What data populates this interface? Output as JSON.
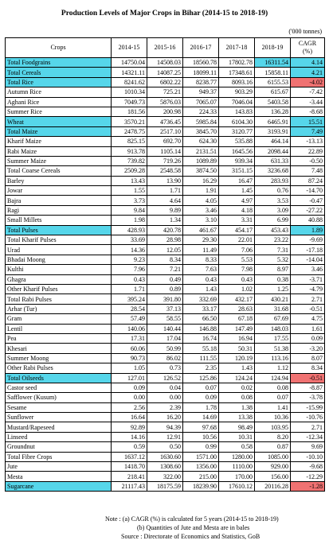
{
  "title": "Production Levels of Major Crops in Bihar (2014-15 to 2018-19)",
  "unit": "('000 tonnes)",
  "headers": {
    "crop": "Crops",
    "years": [
      "2014-15",
      "2015-16",
      "2016-17",
      "2017-18",
      "2018-19"
    ],
    "cagr1": "CAGR",
    "cagr2": "(%)"
  },
  "colors": {
    "highlight": "#56d6ea",
    "negative": "#f07272"
  },
  "rows": [
    {
      "name": "Total Foodgrains",
      "lvl": 1,
      "hl": true,
      "cagr_neg": false,
      "v": [
        "14750.04",
        "14508.03",
        "18560.78",
        "17802.78",
        "16311.54",
        "4.14"
      ]
    },
    {
      "name": "Total Cereals",
      "lvl": 1,
      "hl": true,
      "cagr_neg": false,
      "v": [
        "14321.11",
        "14087.25",
        "18099.11",
        "17348.61",
        "15858.11",
        "4.21"
      ]
    },
    {
      "name": "Total Rice",
      "lvl": 1,
      "hl": true,
      "cagr_neg": true,
      "v": [
        "8241.62",
        "6802.22",
        "8238.77",
        "8093.16",
        "6155.53",
        "-4.02"
      ]
    },
    {
      "name": "Autumn Rice",
      "lvl": 3,
      "hl": false,
      "cagr_neg": false,
      "v": [
        "1010.34",
        "725.21",
        "949.37",
        "903.29",
        "615.67",
        "-7.42"
      ]
    },
    {
      "name": "Aghani Rice",
      "lvl": 3,
      "hl": false,
      "cagr_neg": false,
      "v": [
        "7049.73",
        "5876.03",
        "7065.07",
        "7046.04",
        "5403.58",
        "-3.44"
      ]
    },
    {
      "name": "Summer Rice",
      "lvl": 3,
      "hl": false,
      "cagr_neg": false,
      "v": [
        "181.56",
        "200.98",
        "224.33",
        "143.83",
        "136.28",
        "-8.68"
      ]
    },
    {
      "name": "Wheat",
      "lvl": 1,
      "hl": true,
      "cagr_neg": false,
      "v": [
        "3570.21",
        "4736.45",
        "5985.84",
        "6104.30",
        "6465.91",
        "15.51"
      ]
    },
    {
      "name": "Total Maize",
      "lvl": 1,
      "hl": true,
      "cagr_neg": false,
      "v": [
        "2478.75",
        "2517.10",
        "3845.70",
        "3120.77",
        "3193.91",
        "7.49"
      ]
    },
    {
      "name": "Kharif Maize",
      "lvl": 3,
      "hl": false,
      "cagr_neg": false,
      "v": [
        "825.15",
        "692.70",
        "624.30",
        "535.88",
        "464.14",
        "-13.13"
      ]
    },
    {
      "name": "Rabi Maize",
      "lvl": 3,
      "hl": false,
      "cagr_neg": false,
      "v": [
        "913.78",
        "1105.14",
        "2131.51",
        "1645.56",
        "2098.44",
        "22.89"
      ]
    },
    {
      "name": "Summer Maize",
      "lvl": 3,
      "hl": false,
      "cagr_neg": false,
      "v": [
        "739.82",
        "719.26",
        "1089.89",
        "939.34",
        "631.33",
        "-0.50"
      ]
    },
    {
      "name": "Total Coarse Cereals",
      "lvl": 1,
      "hl": false,
      "cagr_neg": false,
      "v": [
        "2509.28",
        "2548.58",
        "3874.50",
        "3151.15",
        "3236.68",
        "7.48"
      ]
    },
    {
      "name": "Barley",
      "lvl": 2,
      "hl": false,
      "cagr_neg": false,
      "v": [
        "13.43",
        "13.90",
        "16.29",
        "16.47",
        "283.93",
        "87.24"
      ]
    },
    {
      "name": "Jowar",
      "lvl": 2,
      "hl": false,
      "cagr_neg": false,
      "v": [
        "1.55",
        "1.71",
        "1.91",
        "1.45",
        "0.76",
        "-14.70"
      ]
    },
    {
      "name": "Bajra",
      "lvl": 2,
      "hl": false,
      "cagr_neg": false,
      "v": [
        "3.73",
        "4.64",
        "4.05",
        "4.97",
        "3.53",
        "-0.47"
      ]
    },
    {
      "name": "Ragi",
      "lvl": 2,
      "hl": false,
      "cagr_neg": false,
      "v": [
        "9.84",
        "9.89",
        "3.46",
        "4.18",
        "3.09",
        "-27.22"
      ]
    },
    {
      "name": "Small Millets",
      "lvl": 2,
      "hl": false,
      "cagr_neg": false,
      "v": [
        "1.98",
        "1.34",
        "3.10",
        "3.31",
        "6.99",
        "40.88"
      ]
    },
    {
      "name": "Total Pulses",
      "lvl": 1,
      "hl": true,
      "cagr_neg": false,
      "v": [
        "428.93",
        "420.78",
        "461.67",
        "454.17",
        "453.43",
        "1.89"
      ]
    },
    {
      "name": "Total Kharif Pulses",
      "lvl": 2,
      "hl": false,
      "cagr_neg": false,
      "v": [
        "33.69",
        "28.98",
        "29.30",
        "22.01",
        "23.22",
        "-9.69"
      ]
    },
    {
      "name": "Urad",
      "lvl": 3,
      "hl": false,
      "cagr_neg": false,
      "v": [
        "14.36",
        "12.05",
        "11.49",
        "7.06",
        "7.31",
        "-17.18"
      ]
    },
    {
      "name": "Bhadai Moong",
      "lvl": 3,
      "hl": false,
      "cagr_neg": false,
      "v": [
        "9.23",
        "8.34",
        "8.33",
        "5.53",
        "5.32",
        "-14.04"
      ]
    },
    {
      "name": "Kulthi",
      "lvl": 3,
      "hl": false,
      "cagr_neg": false,
      "v": [
        "7.96",
        "7.21",
        "7.63",
        "7.98",
        "8.97",
        "3.46"
      ]
    },
    {
      "name": "Ghagra",
      "lvl": 3,
      "hl": false,
      "cagr_neg": false,
      "v": [
        "0.43",
        "0.49",
        "0.43",
        "0.43",
        "0.38",
        "-3.71"
      ]
    },
    {
      "name": "Other Kharif Pulses",
      "lvl": 3,
      "hl": false,
      "cagr_neg": false,
      "v": [
        "1.71",
        "0.89",
        "1.43",
        "1.02",
        "1.25",
        "-4.79"
      ]
    },
    {
      "name": "Total Rabi Pulses",
      "lvl": 2,
      "hl": false,
      "cagr_neg": false,
      "v": [
        "395.24",
        "391.80",
        "332.69",
        "432.17",
        "430.21",
        "2.71"
      ]
    },
    {
      "name": "Arhar (Tur)",
      "lvl": 3,
      "hl": false,
      "cagr_neg": false,
      "v": [
        "28.54",
        "37.13",
        "33.17",
        "28.63",
        "31.68",
        "-0.51"
      ]
    },
    {
      "name": "Gram",
      "lvl": 3,
      "hl": false,
      "cagr_neg": false,
      "v": [
        "57.49",
        "58.55",
        "66.50",
        "67.18",
        "67.69",
        "4.75"
      ]
    },
    {
      "name": "Lentil",
      "lvl": 3,
      "hl": false,
      "cagr_neg": false,
      "v": [
        "140.06",
        "140.44",
        "146.88",
        "147.49",
        "148.03",
        "1.61"
      ]
    },
    {
      "name": "Pea",
      "lvl": 3,
      "hl": false,
      "cagr_neg": false,
      "v": [
        "17.31",
        "17.04",
        "16.74",
        "16.94",
        "17.55",
        "0.09"
      ]
    },
    {
      "name": "Khesari",
      "lvl": 3,
      "hl": false,
      "cagr_neg": false,
      "v": [
        "60.06",
        "50.99",
        "55.18",
        "50.31",
        "51.38",
        "-3.20"
      ]
    },
    {
      "name": "Summer Moong",
      "lvl": 3,
      "hl": false,
      "cagr_neg": false,
      "v": [
        "90.73",
        "86.02",
        "111.55",
        "120.19",
        "113.16",
        "8.07"
      ]
    },
    {
      "name": "Other Rabi Pulses",
      "lvl": 3,
      "hl": false,
      "cagr_neg": false,
      "v": [
        "1.05",
        "0.73",
        "2.35",
        "1.43",
        "1.12",
        "8.34"
      ]
    },
    {
      "name": "Total Oilseeds",
      "lvl": 1,
      "hl": true,
      "cagr_neg": true,
      "v": [
        "127.01",
        "126.52",
        "125.86",
        "124.24",
        "124.94",
        "-0.51"
      ]
    },
    {
      "name": "Castor seed",
      "lvl": 2,
      "hl": false,
      "cagr_neg": false,
      "v": [
        "0.09",
        "0.04",
        "0.07",
        "0.02",
        "0.08",
        "-8.87"
      ]
    },
    {
      "name": "Safflower (Kusum)",
      "lvl": 2,
      "hl": false,
      "cagr_neg": false,
      "v": [
        "0.00",
        "0.00",
        "0.09",
        "0.08",
        "0.07",
        "-3.78"
      ]
    },
    {
      "name": "Sesame",
      "lvl": 2,
      "hl": false,
      "cagr_neg": false,
      "v": [
        "2.56",
        "2.39",
        "1.78",
        "1.38",
        "1.41",
        "-15.99"
      ]
    },
    {
      "name": "Sunflower",
      "lvl": 2,
      "hl": false,
      "cagr_neg": false,
      "v": [
        "16.64",
        "16.20",
        "14.69",
        "13.38",
        "10.36",
        "-10.76"
      ]
    },
    {
      "name": "Mustard/Rapeseed",
      "lvl": 2,
      "hl": false,
      "cagr_neg": false,
      "v": [
        "92.89",
        "94.39",
        "97.68",
        "98.49",
        "103.95",
        "2.71"
      ]
    },
    {
      "name": "Linseed",
      "lvl": 2,
      "hl": false,
      "cagr_neg": false,
      "v": [
        "14.16",
        "12.91",
        "10.56",
        "10.31",
        "8.20",
        "-12.34"
      ]
    },
    {
      "name": "Groundnut",
      "lvl": 2,
      "hl": false,
      "cagr_neg": false,
      "v": [
        "0.59",
        "0.50",
        "0.99",
        "0.58",
        "0.87",
        "9.69"
      ]
    },
    {
      "name": "Total Fibre Crops",
      "lvl": 1,
      "hl": false,
      "cagr_neg": false,
      "v": [
        "1637.12",
        "1630.60",
        "1571.00",
        "1280.00",
        "1085.00",
        "-10.10"
      ]
    },
    {
      "name": "Jute",
      "lvl": 2,
      "hl": false,
      "cagr_neg": false,
      "v": [
        "1418.70",
        "1308.60",
        "1356.00",
        "1110.00",
        "929.00",
        "-9.68"
      ]
    },
    {
      "name": "Mesta",
      "lvl": 2,
      "hl": false,
      "cagr_neg": false,
      "v": [
        "218.41",
        "322.00",
        "215.00",
        "170.00",
        "156.00",
        "-12.29"
      ]
    },
    {
      "name": "Sugarcane",
      "lvl": 1,
      "hl": true,
      "cagr_neg": true,
      "v": [
        "21117.43",
        "18175.59",
        "18239.90",
        "17610.12",
        "20116.28",
        "-1.28"
      ]
    }
  ],
  "notes": {
    "n1": "Note : (a) CAGR (%) is calculated for 5 years (2014-15 to 2018-19)",
    "n2": "(b) Quantities of Jute and Mesta are in bales",
    "n3": "Source : Directorate of Economics and Statistics, GoB"
  }
}
